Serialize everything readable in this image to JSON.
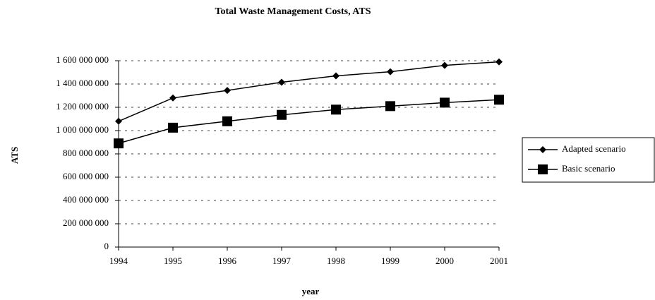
{
  "chart_data": {
    "type": "line",
    "title": "Total Waste Management Costs, ATS",
    "x_label": "year",
    "y_label": "ATS",
    "x": [
      1994,
      1995,
      1996,
      1997,
      1998,
      1999,
      2000,
      2001
    ],
    "xlim": [
      1994,
      2001
    ],
    "xticks": [
      1994,
      1995,
      1996,
      1997,
      1998,
      1999,
      2000,
      2001
    ],
    "ylim": [
      0,
      1600000000
    ],
    "yticks": [
      0,
      {
        "value": 200000000,
        "label": "200 000 000"
      },
      {
        "value": 400000000,
        "label": "400 000 000"
      },
      {
        "value": 600000000,
        "label": "600 000 000"
      },
      {
        "value": 800000000,
        "label": "800 000 000"
      },
      {
        "value": 1000000000,
        "label": "1 000 000 000"
      },
      {
        "value": 1200000000,
        "label": "1 200 000 000"
      },
      {
        "value": 1400000000,
        "label": "1 400 000 000"
      },
      {
        "value": 1600000000,
        "label": "1 600 000 000"
      }
    ],
    "grid": true,
    "legend": "right",
    "series": [
      {
        "name": "Adapted scenario",
        "color": "#000000",
        "marker": "diamond",
        "values": [
          1080000000,
          1280000000,
          1345000000,
          1415000000,
          1470000000,
          1505000000,
          1560000000,
          1590000000
        ]
      },
      {
        "name": "Basic scenario",
        "color": "#000000",
        "marker": "square",
        "values": [
          890000000,
          1025000000,
          1080000000,
          1135000000,
          1180000000,
          1210000000,
          1240000000,
          1265000000
        ]
      }
    ]
  }
}
